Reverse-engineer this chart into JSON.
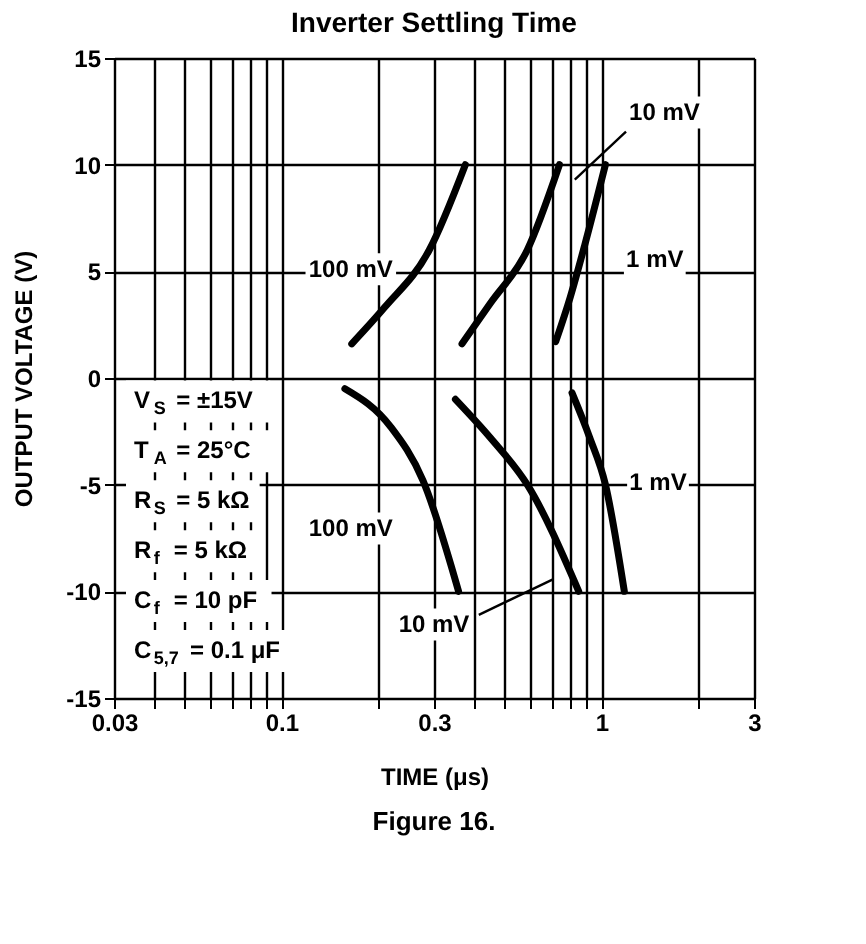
{
  "chart_data": {
    "type": "line",
    "title": "Inverter Settling Time",
    "xlabel": "TIME (μs)",
    "ylabel": "OUTPUT VOLTAGE (V)",
    "log": "x",
    "grid": true,
    "line_style": "solid",
    "marker": "none",
    "xlim": [
      0.03,
      3
    ],
    "ylim": [
      -15,
      15
    ],
    "xticks": [
      0.03,
      {
        "value": 0.04,
        "label": null
      },
      {
        "value": 0.05,
        "label": null
      },
      {
        "value": 0.06,
        "label": null
      },
      {
        "value": 0.07,
        "label": null
      },
      {
        "value": 0.08,
        "label": null
      },
      {
        "value": 0.09,
        "label": null
      },
      0.1,
      {
        "value": 0.2,
        "label": null
      },
      0.3,
      {
        "value": 0.4,
        "label": null
      },
      {
        "value": 0.5,
        "label": null
      },
      {
        "value": 0.6,
        "label": null
      },
      {
        "value": 0.7,
        "label": null
      },
      {
        "value": 0.8,
        "label": null
      },
      {
        "value": 0.9,
        "label": null
      },
      1,
      {
        "value": 2,
        "label": null
      },
      3
    ],
    "yticks": [
      -15,
      -10,
      -5,
      0,
      5,
      10,
      15
    ],
    "series": [
      {
        "color": "#000000",
        "x": [
          0.166,
          0.21,
          0.29,
          0.376
        ],
        "values": [
          1.6,
          3.3,
          6.0,
          10
        ]
      },
      {
        "color": "#000000",
        "x": [
          0.367,
          0.45,
          0.587,
          0.74
        ],
        "values": [
          1.6,
          3.5,
          6.0,
          10
        ]
      },
      {
        "color": "#000000",
        "x": [
          0.72,
          0.8,
          0.89,
          1.03
        ],
        "values": [
          1.7,
          3.8,
          6.3,
          10
        ]
      },
      {
        "color": "#000000",
        "x": [
          0.158,
          0.22,
          0.277,
          0.358
        ],
        "values": [
          -0.5,
          -2.3,
          -4.8,
          -10
        ]
      },
      {
        "color": "#000000",
        "x": [
          0.35,
          0.45,
          0.587,
          0.85
        ],
        "values": [
          -1.0,
          -2.8,
          -5.0,
          -10
        ]
      },
      {
        "color": "#000000",
        "x": [
          0.81,
          0.92,
          1.03,
          1.18
        ],
        "values": [
          -0.7,
          -2.8,
          -5.0,
          -10
        ]
      }
    ],
    "annotations": [
      "100 mV",
      "10 mV",
      "1 mV",
      "100 mV",
      "10 mV",
      "1 mV",
      "V$_{S}$ = ±15V",
      "T$_{A}$ = 25°C",
      "R$_{S}$ = 5 kΩ",
      "R$_{f}$ = 5 kΩ",
      "C$_{f}$ = 10 pF",
      "C$_{5,7}$ = 0.1 μF",
      "Figure 16."
    ]
  }
}
